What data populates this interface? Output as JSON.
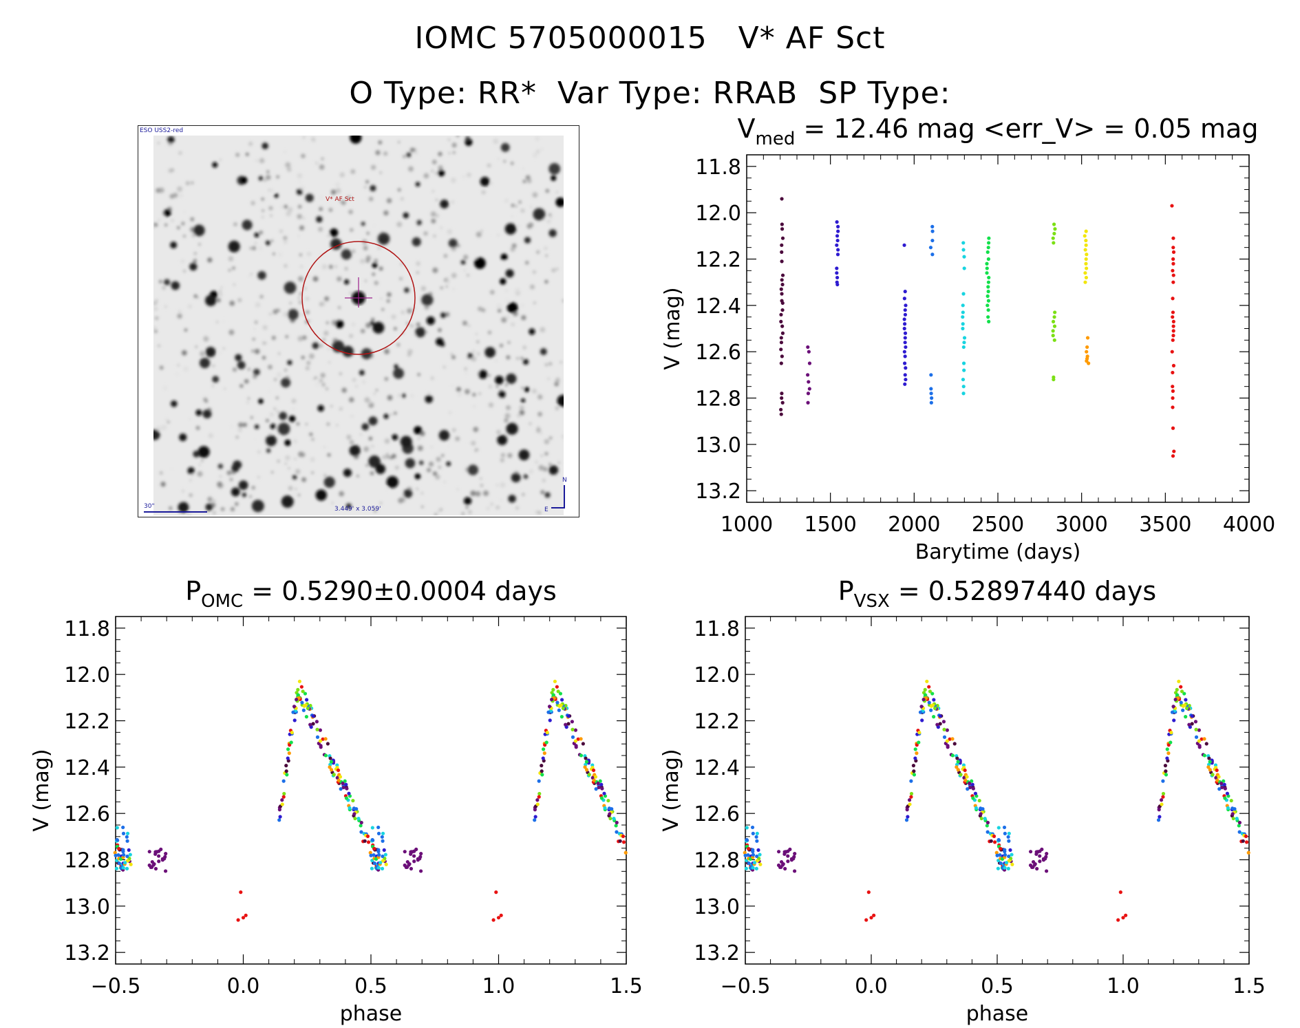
{
  "header": {
    "line1": "IOMC 5705000015   V* AF Sct",
    "line2": "O Type: RR*  Var Type: RRAB  SP Type:"
  },
  "image_panel": {
    "survey_label": "ESO USS2-red",
    "target_label": "V* AF Sct",
    "scale_label": "30\"",
    "size_label": "3.449' x 3.059'",
    "north_label": "N",
    "east_label": "E"
  },
  "colors": {
    "palette": [
      "#4b0a3c",
      "#6b0f78",
      "#2e1bd0",
      "#1c6fe8",
      "#18d4e0",
      "#12e04a",
      "#7be014",
      "#f2e60c",
      "#ff9a00",
      "#e81212"
    ],
    "circle": "#b01515",
    "crosshair": "#9a208a"
  },
  "chart_data": [
    {
      "id": "lightcurve",
      "type": "scatter",
      "title_main": "V",
      "title_sub": "med",
      "title_rest": " = 12.46 mag <err_V> = 0.05 mag",
      "xlabel": "Barytime (days)",
      "ylabel": "V (mag)",
      "xlim": [
        1000,
        4000
      ],
      "ylim": [
        13.25,
        11.75
      ],
      "xticks": [
        1000,
        1500,
        2000,
        2500,
        3000,
        3500,
        4000
      ],
      "xticklabels": [
        "1000",
        "1500",
        "2000",
        "2500",
        "3000",
        "3500",
        "4000"
      ],
      "yticks": [
        11.8,
        12.0,
        12.2,
        12.4,
        12.6,
        12.8,
        13.0,
        13.2
      ],
      "yticklabels": [
        "11.8",
        "12.0",
        "12.2",
        "12.4",
        "12.6",
        "12.8",
        "13.0",
        "13.2"
      ],
      "groups": [
        {
          "x": 1210,
          "color": 0,
          "values": [
            11.94,
            12.05,
            12.07,
            12.11,
            12.14,
            12.17,
            12.21,
            12.27,
            12.29,
            12.31,
            12.33,
            12.35,
            12.38,
            12.39,
            12.42,
            12.44,
            12.47,
            12.49,
            12.52,
            12.54,
            12.56,
            12.59,
            12.62,
            12.65,
            12.78,
            12.8,
            12.82,
            12.85,
            12.87
          ]
        },
        {
          "x": 1370,
          "color": 1,
          "values": [
            12.58,
            12.6,
            12.65,
            12.7,
            12.73,
            12.76,
            12.78,
            12.82
          ]
        },
        {
          "x": 1540,
          "color": 2,
          "values": [
            12.04,
            12.06,
            12.08,
            12.1,
            12.12,
            12.14,
            12.16,
            12.18,
            12.24,
            12.26,
            12.28,
            12.3,
            12.31
          ]
        },
        {
          "x": 1945,
          "color": 2,
          "values": [
            12.14,
            12.34,
            12.37,
            12.4,
            12.42,
            12.44,
            12.46,
            12.48,
            12.5,
            12.52,
            12.54,
            12.56,
            12.58,
            12.6,
            12.62,
            12.65,
            12.67,
            12.7,
            12.72,
            12.74
          ]
        },
        {
          "x": 2105,
          "color": 3,
          "values": [
            12.06,
            12.08,
            12.12,
            12.15,
            12.18,
            12.7,
            12.76,
            12.78,
            12.8,
            12.82
          ]
        },
        {
          "x": 2295,
          "color": 4,
          "values": [
            12.13,
            12.16,
            12.19,
            12.24,
            12.35,
            12.4,
            12.43,
            12.45,
            12.48,
            12.5,
            12.54,
            12.56,
            12.58,
            12.65,
            12.68,
            12.72,
            12.75,
            12.78
          ]
        },
        {
          "x": 2440,
          "color": 5,
          "values": [
            12.11,
            12.13,
            12.15,
            12.17,
            12.2,
            12.22,
            12.24,
            12.26,
            12.28,
            12.3,
            12.32,
            12.34,
            12.36,
            12.38,
            12.4,
            12.42,
            12.45,
            12.47
          ]
        },
        {
          "x": 2835,
          "color": 6,
          "values": [
            12.05,
            12.07,
            12.09,
            12.11,
            12.13,
            12.43,
            12.45,
            12.47,
            12.49,
            12.51,
            12.53,
            12.55,
            12.71,
            12.72
          ]
        },
        {
          "x": 3025,
          "color": 7,
          "values": [
            12.08,
            12.1,
            12.12,
            12.14,
            12.16,
            12.18,
            12.2,
            12.22,
            12.24,
            12.26,
            12.28,
            12.3
          ]
        },
        {
          "x": 3035,
          "color": 8,
          "values": [
            12.54,
            12.58,
            12.6,
            12.62,
            12.63,
            12.64,
            12.65
          ]
        },
        {
          "x": 3545,
          "color": 9,
          "values": [
            11.97,
            12.11,
            12.15,
            12.17,
            12.2,
            12.22,
            12.25,
            12.27,
            12.3,
            12.37,
            12.43,
            12.45,
            12.47,
            12.49,
            12.51,
            12.53,
            12.55,
            12.6,
            12.66,
            12.69,
            12.75,
            12.77,
            12.8,
            12.84,
            12.93,
            13.03,
            13.05
          ]
        }
      ]
    },
    {
      "id": "phase_omc",
      "type": "scatter",
      "title_main": "P",
      "title_sub": "OMC",
      "title_rest": " = 0.5290±0.0004 days",
      "xlabel": "phase",
      "ylabel": "V (mag)",
      "xlim": [
        -0.5,
        1.5
      ],
      "ylim": [
        13.25,
        11.75
      ],
      "xticks": [
        -0.5,
        0.0,
        0.5,
        1.0,
        1.5
      ],
      "xticklabels": [
        "−0.5",
        "0.0",
        "0.5",
        "1.0",
        "1.5"
      ],
      "yticks": [
        11.8,
        12.0,
        12.2,
        12.4,
        12.6,
        12.8,
        13.0,
        13.2
      ],
      "yticklabels": [
        "11.8",
        "12.0",
        "12.2",
        "12.4",
        "12.6",
        "12.8",
        "13.0",
        "13.2"
      ],
      "curve": {
        "rise_phase": [
          0.14,
          0.215
        ],
        "rise_mag": [
          12.62,
          12.06
        ],
        "decline_phase": [
          0.215,
          0.52
        ],
        "decline_mag": [
          12.06,
          12.8
        ],
        "flat_phase": [
          0.52,
          0.72
        ],
        "flat_mag": 12.8,
        "outliers": [
          [
            -0.01,
            12.94
          ],
          [
            0.0,
            13.05
          ],
          [
            0.01,
            13.04
          ],
          [
            -0.02,
            13.06
          ]
        ]
      }
    },
    {
      "id": "phase_vsx",
      "type": "scatter",
      "title_main": "P",
      "title_sub": "VSX",
      "title_rest": " = 0.52897440 days",
      "xlabel": "phase",
      "ylabel": "V (mag)",
      "xlim": [
        -0.5,
        1.5
      ],
      "ylim": [
        13.25,
        11.75
      ],
      "xticks": [
        -0.5,
        0.0,
        0.5,
        1.0,
        1.5
      ],
      "xticklabels": [
        "−0.5",
        "0.0",
        "0.5",
        "1.0",
        "1.5"
      ],
      "yticks": [
        11.8,
        12.0,
        12.2,
        12.4,
        12.6,
        12.8,
        13.0,
        13.2
      ],
      "yticklabels": [
        "11.8",
        "12.0",
        "12.2",
        "12.4",
        "12.6",
        "12.8",
        "13.0",
        "13.2"
      ],
      "curve": {
        "rise_phase": [
          0.14,
          0.215
        ],
        "rise_mag": [
          12.62,
          12.06
        ],
        "decline_phase": [
          0.215,
          0.52
        ],
        "decline_mag": [
          12.06,
          12.8
        ],
        "flat_phase": [
          0.52,
          0.72
        ],
        "flat_mag": 12.8,
        "outliers": [
          [
            -0.01,
            12.94
          ],
          [
            0.0,
            13.05
          ],
          [
            0.01,
            13.04
          ],
          [
            -0.02,
            13.06
          ]
        ]
      }
    }
  ]
}
